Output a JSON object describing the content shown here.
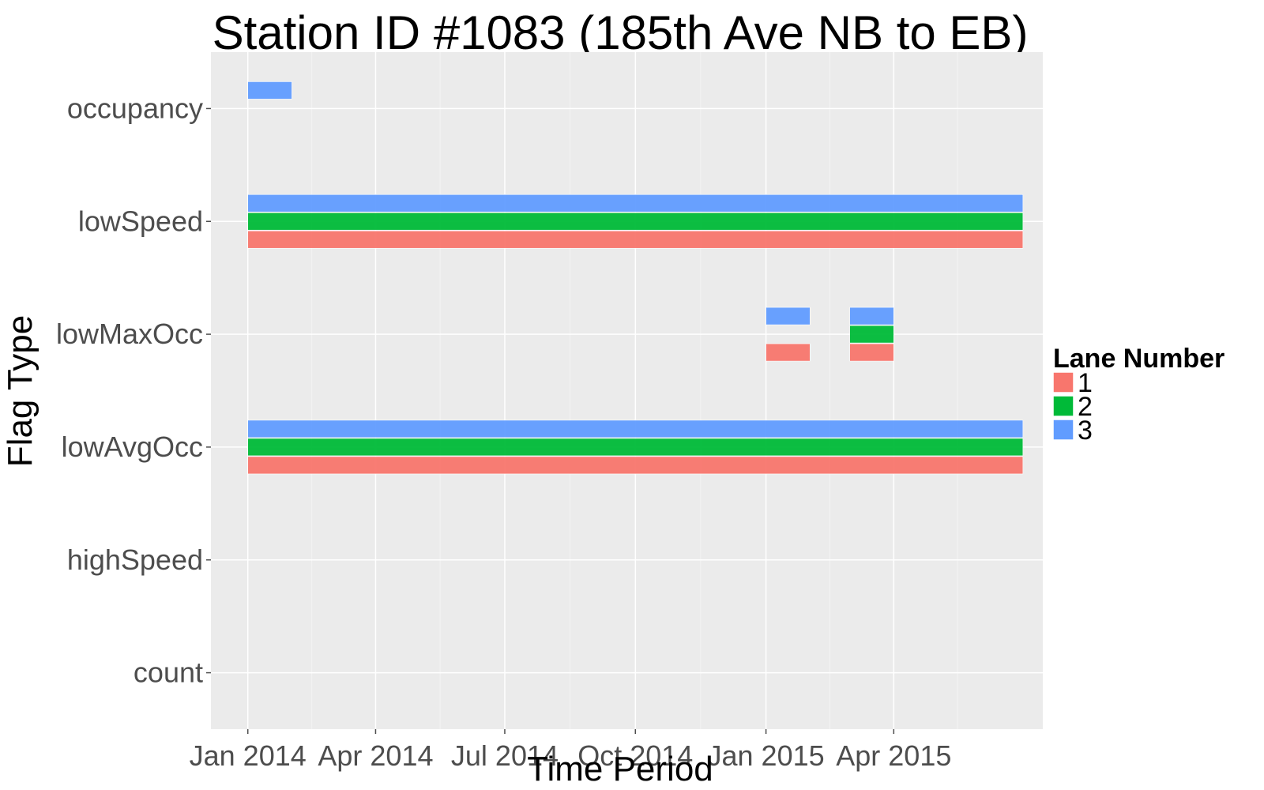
{
  "chart_data": {
    "type": "bar",
    "title": "Station ID #1083 (185th Ave NB to EB)",
    "xlabel": "Time Period",
    "ylabel": "Flag Type",
    "x_ticks": [
      "Jan 2014",
      "Apr 2014",
      "Jul 2014",
      "Oct 2014",
      "Jan 2015",
      "Apr 2015"
    ],
    "y_categories": [
      "occupancy",
      "lowSpeed",
      "lowMaxOcc",
      "lowAvgOcc",
      "highSpeed",
      "count"
    ],
    "xlim": [
      "2013-12-06",
      "2015-07-15"
    ],
    "legend": {
      "title": "Lane Number",
      "position": "right",
      "entries": [
        {
          "label": "1",
          "color": "#F8766D"
        },
        {
          "label": "2",
          "color": "#00BA38"
        },
        {
          "label": "3",
          "color": "#619CFF"
        }
      ]
    },
    "background": "#ebebeb",
    "grid": true,
    "series": [
      {
        "lane": "1",
        "color": "#F8766D",
        "segments": [
          {
            "flag": "lowSpeed",
            "start": "2014-01-01",
            "end": "2015-07-01"
          },
          {
            "flag": "lowMaxOcc",
            "start": "2015-01-01",
            "end": "2015-02-01"
          },
          {
            "flag": "lowMaxOcc",
            "start": "2015-03-01",
            "end": "2015-04-01"
          },
          {
            "flag": "lowAvgOcc",
            "start": "2014-01-01",
            "end": "2015-07-01"
          }
        ]
      },
      {
        "lane": "2",
        "color": "#00BA38",
        "segments": [
          {
            "flag": "lowSpeed",
            "start": "2014-01-01",
            "end": "2015-07-01"
          },
          {
            "flag": "lowMaxOcc",
            "start": "2015-03-01",
            "end": "2015-04-01"
          },
          {
            "flag": "lowAvgOcc",
            "start": "2014-01-01",
            "end": "2015-07-01"
          }
        ]
      },
      {
        "lane": "3",
        "color": "#619CFF",
        "segments": [
          {
            "flag": "occupancy",
            "start": "2014-01-01",
            "end": "2014-02-01"
          },
          {
            "flag": "lowSpeed",
            "start": "2014-01-01",
            "end": "2015-07-01"
          },
          {
            "flag": "lowMaxOcc",
            "start": "2015-01-01",
            "end": "2015-02-01"
          },
          {
            "flag": "lowMaxOcc",
            "start": "2015-03-01",
            "end": "2015-04-01"
          },
          {
            "flag": "lowAvgOcc",
            "start": "2014-01-01",
            "end": "2015-07-01"
          }
        ]
      }
    ]
  }
}
